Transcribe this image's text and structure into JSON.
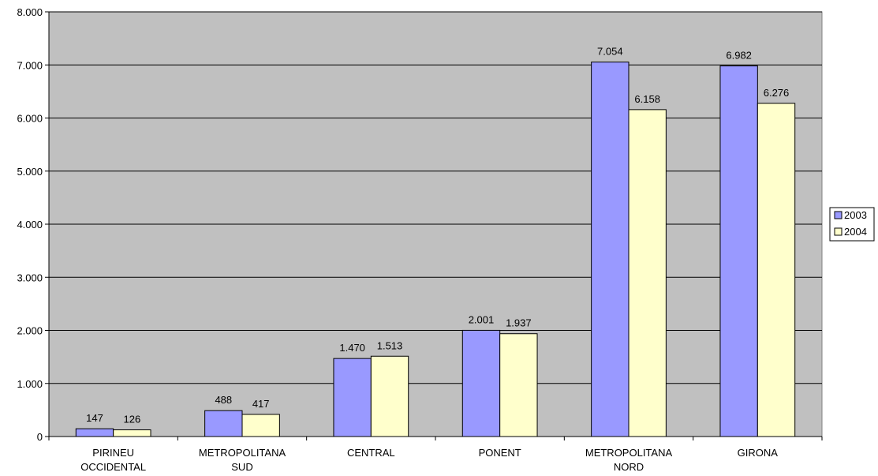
{
  "chart_data": {
    "type": "bar",
    "categories": [
      [
        "PIRINEU",
        "OCCIDENTAL"
      ],
      [
        "METROPOLITANA",
        "SUD"
      ],
      [
        "CENTRAL"
      ],
      [
        "PONENT"
      ],
      [
        "METROPOLITANA",
        "NORD"
      ],
      [
        "GIRONA"
      ]
    ],
    "series": [
      {
        "name": "2003",
        "color": "#9999ff",
        "values": [
          147,
          488,
          1470,
          2001,
          7054,
          6982
        ],
        "labels": [
          "147",
          "488",
          "1.470",
          "2.001",
          "7.054",
          "6.982"
        ]
      },
      {
        "name": "2004",
        "color": "#ffffcc",
        "values": [
          126,
          417,
          1513,
          1937,
          6158,
          6276
        ],
        "labels": [
          "126",
          "417",
          "1.513",
          "1.937",
          "6.158",
          "6.276"
        ]
      }
    ],
    "ylim": [
      0,
      8000
    ],
    "yticks": [
      0,
      1000,
      2000,
      3000,
      4000,
      5000,
      6000,
      7000,
      8000
    ],
    "ytick_labels": [
      "0",
      "1.000",
      "2.000",
      "3.000",
      "4.000",
      "5.000",
      "6.000",
      "7.000",
      "8.000"
    ],
    "grid": true,
    "plot_background": "#c0c0c0",
    "legend_position": "right"
  }
}
